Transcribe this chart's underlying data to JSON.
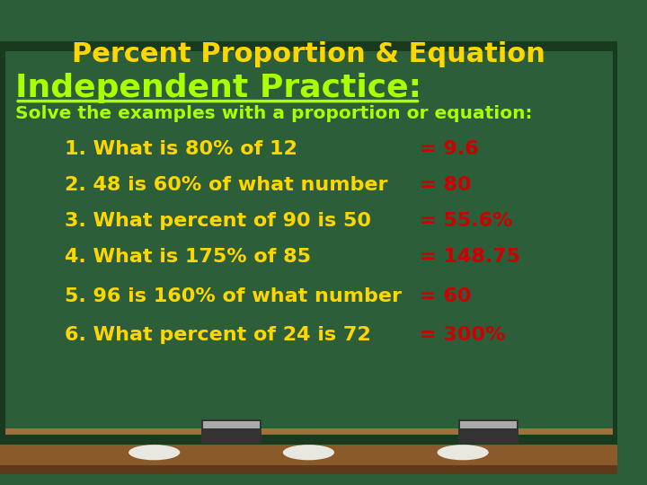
{
  "title": "Percent Proportion & Equation",
  "title_color": "#FFD700",
  "subtitle": "Independent Practice:",
  "subtitle_color": "#AAFF00",
  "instruction": "Solve the examples with a proportion or equation:",
  "instruction_color": "#AAFF00",
  "questions": [
    "1. What is 80% of 12",
    "2. 48 is 60% of what number",
    "3. What percent of 90 is 50",
    "4. What is 175% of 85",
    "5. 96 is 160% of what number",
    "6. What percent of 24 is 72"
  ],
  "answers": [
    "= 9.6",
    "= 80",
    "= 55.6%",
    "= 148.75",
    "= 60",
    "= 300%"
  ],
  "question_color": "#FFD700",
  "answer_color": "#CC0000",
  "bg_color": "#2D5E3A",
  "board_dark": "#1E4028",
  "ledge_color": "#8B5A2B",
  "chalk_color": "#E8E8E0",
  "fig_width": 7.2,
  "fig_height": 5.4
}
